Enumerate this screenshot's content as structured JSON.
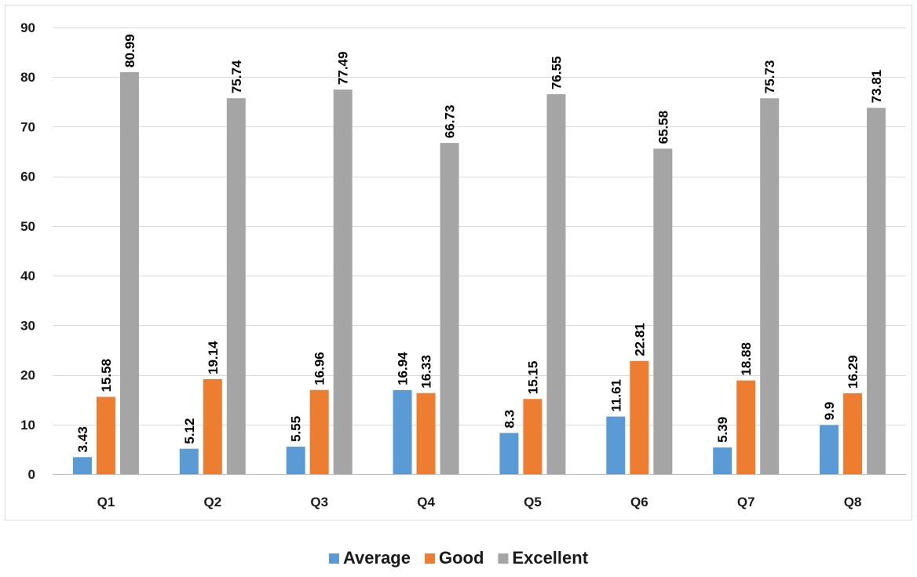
{
  "chart_data": {
    "type": "bar",
    "categories": [
      "Q1",
      "Q2",
      "Q3",
      "Q4",
      "Q5",
      "Q6",
      "Q7",
      "Q8"
    ],
    "series": [
      {
        "name": "Average",
        "color": "#5b9bd5",
        "values": [
          3.43,
          5.12,
          5.55,
          16.94,
          8.3,
          11.61,
          5.39,
          9.9
        ]
      },
      {
        "name": "Good",
        "color": "#ed7d31",
        "values": [
          15.58,
          19.14,
          16.96,
          16.33,
          15.15,
          22.81,
          18.88,
          16.29
        ]
      },
      {
        "name": "Excellent",
        "color": "#a5a5a5",
        "values": [
          80.99,
          75.74,
          77.49,
          66.73,
          76.55,
          65.58,
          75.73,
          73.81
        ]
      }
    ],
    "title": "",
    "xlabel": "",
    "ylabel": "",
    "ylim": [
      0,
      90
    ],
    "yticks": [
      0,
      10,
      20,
      30,
      40,
      50,
      60,
      70,
      80,
      90
    ],
    "grid": true,
    "legend_position": "bottom",
    "data_labels": true
  }
}
